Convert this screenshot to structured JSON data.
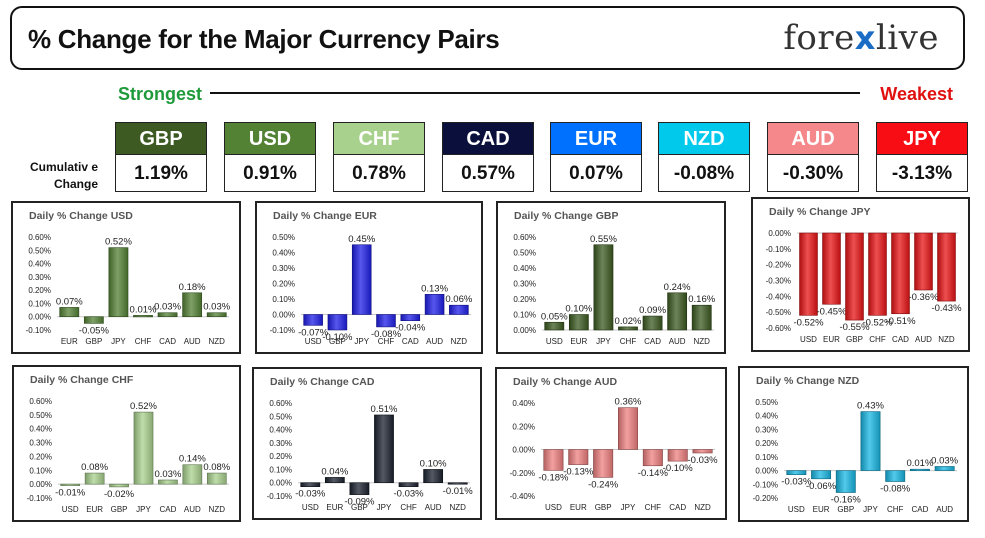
{
  "header": {
    "title": "% Change for the Major Currency Pairs",
    "logo_left": "fore",
    "logo_x": "x",
    "logo_right": "live"
  },
  "strongest_label": "Strongest",
  "weakest_label": "Weakest",
  "cumulative_label_line1": "Cumulativ e",
  "cumulative_label_line2": "Change",
  "currencies": [
    {
      "name": "GBP",
      "value": "1.19%",
      "bg": "#3c5a21",
      "fg": "#ffffff"
    },
    {
      "name": "USD",
      "value": "0.91%",
      "bg": "#548235",
      "fg": "#ffffff"
    },
    {
      "name": "CHF",
      "value": "0.78%",
      "bg": "#a9d18e",
      "fg": "#ffffff"
    },
    {
      "name": "CAD",
      "value": "0.57%",
      "bg": "#0b0f3c",
      "fg": "#ffffff"
    },
    {
      "name": "EUR",
      "value": "0.07%",
      "bg": "#0070ff",
      "fg": "#ffffff"
    },
    {
      "name": "NZD",
      "value": "-0.08%",
      "bg": "#00c9ec",
      "fg": "#ffffff"
    },
    {
      "name": "AUD",
      "value": "-0.30%",
      "bg": "#f4888a",
      "fg": "#ffffff"
    },
    {
      "name": "JPY",
      "value": "-3.13%",
      "bg": "#f90d14",
      "fg": "#ffffff"
    }
  ],
  "chart_data": [
    {
      "type": "bar",
      "title": "Daily % Change USD",
      "color": "#548235",
      "categories": [
        "EUR",
        "GBP",
        "JPY",
        "CHF",
        "CAD",
        "AUD",
        "NZD"
      ],
      "values": [
        0.07,
        -0.05,
        0.52,
        0.01,
        0.03,
        0.18,
        0.03
      ],
      "labels": [
        "0.07%",
        "-0.05%",
        "0.52%",
        "0.01%",
        "0.03%",
        "0.18%",
        "0.03%"
      ],
      "ylim": [
        -0.1,
        0.6
      ],
      "ticks": [
        -0.1,
        0.0,
        0.1,
        0.2,
        0.3,
        0.4,
        0.5,
        0.6
      ],
      "tick_labels": [
        "-0.10%",
        "0.00%",
        "0.10%",
        "0.20%",
        "0.30%",
        "0.40%",
        "0.50%",
        "0.60%"
      ]
    },
    {
      "type": "bar",
      "title": "Daily % Change EUR",
      "color": "#1f1fe8",
      "categories": [
        "USD",
        "GBP",
        "JPY",
        "CHF",
        "CAD",
        "AUD",
        "NZD"
      ],
      "values": [
        -0.07,
        -0.1,
        0.45,
        -0.08,
        -0.04,
        0.13,
        0.06
      ],
      "labels": [
        "-0.07%",
        "-0.10%",
        "0.45%",
        "-0.08%",
        "-0.04%",
        "0.13%",
        "0.06%"
      ],
      "ylim": [
        -0.1,
        0.5
      ],
      "ticks": [
        -0.1,
        0.0,
        0.1,
        0.2,
        0.3,
        0.4,
        0.5
      ],
      "tick_labels": [
        "-0.10%",
        "0.00%",
        "0.10%",
        "0.20%",
        "0.30%",
        "0.40%",
        "0.50%"
      ]
    },
    {
      "type": "bar",
      "title": "Daily % Change GBP",
      "color": "#3c5a21",
      "categories": [
        "USD",
        "EUR",
        "JPY",
        "CHF",
        "CAD",
        "AUD",
        "NZD"
      ],
      "values": [
        0.05,
        0.1,
        0.55,
        0.02,
        0.09,
        0.24,
        0.16
      ],
      "labels": [
        "0.05%",
        "0.10%",
        "0.55%",
        "0.02%",
        "0.09%",
        "0.24%",
        "0.16%"
      ],
      "ylim": [
        0.0,
        0.6
      ],
      "ticks": [
        0.0,
        0.1,
        0.2,
        0.3,
        0.4,
        0.5,
        0.6
      ],
      "tick_labels": [
        "0.00%",
        "0.10%",
        "0.20%",
        "0.30%",
        "0.40%",
        "0.50%",
        "0.60%"
      ]
    },
    {
      "type": "bar",
      "title": "Daily % Change JPY",
      "color": "#e81416",
      "categories": [
        "USD",
        "EUR",
        "GBP",
        "CHF",
        "CAD",
        "AUD",
        "NZD"
      ],
      "values": [
        -0.52,
        -0.45,
        -0.55,
        -0.52,
        -0.51,
        -0.36,
        -0.43
      ],
      "labels": [
        "-0.52%",
        "-0.45%",
        "-0.55%",
        "-0.52%",
        "-0.51%",
        "-0.36%",
        "-0.43%"
      ],
      "ylim": [
        -0.6,
        0.0
      ],
      "ticks": [
        -0.6,
        -0.5,
        -0.4,
        -0.3,
        -0.2,
        -0.1,
        0.0
      ],
      "tick_labels": [
        "-0.60%",
        "-0.50%",
        "-0.40%",
        "-0.30%",
        "-0.20%",
        "-0.10%",
        "0.00%"
      ]
    },
    {
      "type": "bar",
      "title": "Daily % Change CHF",
      "color": "#a9d18e",
      "categories": [
        "USD",
        "EUR",
        "GBP",
        "JPY",
        "CAD",
        "AUD",
        "NZD"
      ],
      "values": [
        -0.01,
        0.08,
        -0.02,
        0.52,
        0.03,
        0.14,
        0.08
      ],
      "labels": [
        "-0.01%",
        "0.08%",
        "-0.02%",
        "0.52%",
        "0.03%",
        "0.14%",
        "0.08%"
      ],
      "ylim": [
        -0.1,
        0.6
      ],
      "ticks": [
        -0.1,
        0.0,
        0.1,
        0.2,
        0.3,
        0.4,
        0.5,
        0.6
      ],
      "tick_labels": [
        "-0.10%",
        "0.00%",
        "0.10%",
        "0.20%",
        "0.30%",
        "0.40%",
        "0.50%",
        "0.60%"
      ]
    },
    {
      "type": "bar",
      "title": "Daily % Change CAD",
      "color": "#1b2230",
      "categories": [
        "USD",
        "EUR",
        "GBP",
        "JPY",
        "CHF",
        "AUD",
        "NZD"
      ],
      "values": [
        -0.03,
        0.04,
        -0.09,
        0.51,
        -0.03,
        0.1,
        -0.01
      ],
      "labels": [
        "-0.03%",
        "0.04%",
        "-0.09%",
        "0.51%",
        "-0.03%",
        "0.10%",
        "-0.01%"
      ],
      "ylim": [
        -0.1,
        0.6
      ],
      "ticks": [
        -0.1,
        0.0,
        0.1,
        0.2,
        0.3,
        0.4,
        0.5,
        0.6
      ],
      "tick_labels": [
        "-0.10%",
        "0.00%",
        "0.10%",
        "0.20%",
        "0.30%",
        "0.40%",
        "0.50%",
        "0.60%"
      ]
    },
    {
      "type": "bar",
      "title": "Daily % Change AUD",
      "color": "#ef8080",
      "categories": [
        "USD",
        "EUR",
        "GBP",
        "JPY",
        "CHF",
        "CAD",
        "NZD"
      ],
      "values": [
        -0.18,
        -0.13,
        -0.24,
        0.36,
        -0.14,
        -0.1,
        -0.03
      ],
      "labels": [
        "-0.18%",
        "-0.13%",
        "-0.24%",
        "0.36%",
        "-0.14%",
        "-0.10%",
        "-0.03%"
      ],
      "ylim": [
        -0.4,
        0.4
      ],
      "ticks": [
        -0.4,
        -0.2,
        0.0,
        0.2,
        0.4
      ],
      "tick_labels": [
        "-0.40%",
        "-0.20%",
        "0.00%",
        "0.20%",
        "0.40%"
      ]
    },
    {
      "type": "bar",
      "title": "Daily % Change NZD",
      "color": "#18b7e3",
      "categories": [
        "USD",
        "EUR",
        "GBP",
        "JPY",
        "CHF",
        "CAD",
        "AUD"
      ],
      "values": [
        -0.03,
        -0.06,
        -0.16,
        0.43,
        -0.08,
        0.01,
        0.03
      ],
      "labels": [
        "-0.03%",
        "-0.06%",
        "-0.16%",
        "0.43%",
        "-0.08%",
        "0.01%",
        "0.03%"
      ],
      "ylim": [
        -0.2,
        0.5
      ],
      "ticks": [
        -0.2,
        -0.1,
        0.0,
        0.1,
        0.2,
        0.3,
        0.4,
        0.5
      ],
      "tick_labels": [
        "-0.20%",
        "-0.10%",
        "0.00%",
        "0.10%",
        "0.20%",
        "0.30%",
        "0.40%",
        "0.50%"
      ]
    }
  ]
}
